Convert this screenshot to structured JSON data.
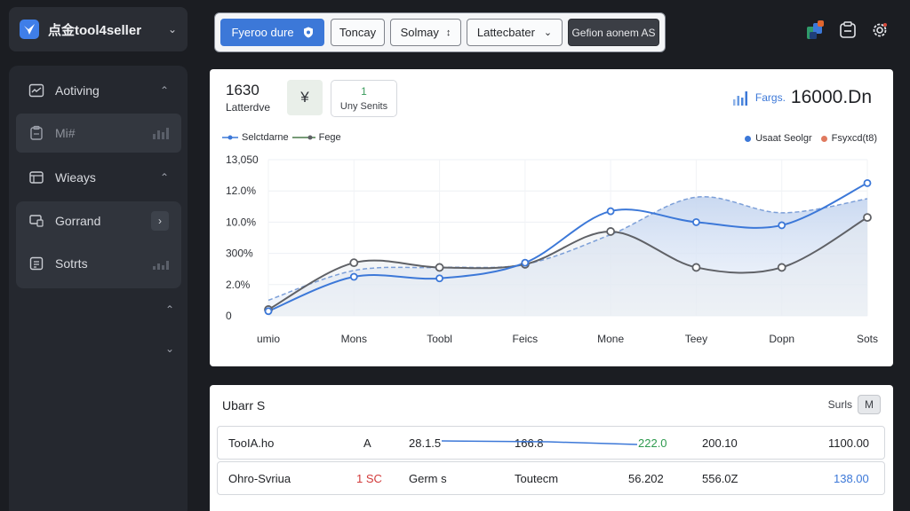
{
  "brand": {
    "name": "点金tool4seller"
  },
  "sidebar": {
    "items": [
      {
        "label": "Aotiving",
        "icon": "activity-icon",
        "trail": "chevron-up"
      },
      {
        "label": "Mi#",
        "icon": "clipboard-icon",
        "trail": "bars"
      },
      {
        "label": "Wieays",
        "icon": "window-icon",
        "trail": "chevron-up"
      },
      {
        "label": "Gorrand",
        "icon": "monitor-icon",
        "trail": "chevron-right"
      },
      {
        "label": "Sotrts",
        "icon": "report-icon",
        "trail": "bars"
      }
    ]
  },
  "toolbar": {
    "buttons": [
      "Fyeroo dure",
      "Toncay",
      "Solmay",
      "Lattecbater",
      "Gefion aonem AS"
    ],
    "solmay_suffix": "↕"
  },
  "kpi": {
    "value": "1630",
    "label": "Latterdve",
    "currency": "¥",
    "unit_value": "1",
    "unit_label": "Uny Senits"
  },
  "fargs": {
    "label": "Fargs.",
    "value": "16000.Dn"
  },
  "legend": {
    "left": [
      "Selctdarne",
      "Fege"
    ],
    "right": [
      "Usaat Seolgr",
      "Fsyxcd(t8)"
    ]
  },
  "colors": {
    "accent": "#3c78d8",
    "series_b": "#5f6166",
    "series_c": "#7c9fd8",
    "green": "#2e9a4e",
    "red": "#d23b3b",
    "dot_orange": "#e07a5f"
  },
  "chart_data": {
    "type": "line",
    "categories": [
      "umio",
      "Mons",
      "Toobl",
      "Feics",
      "Mone",
      "Teey",
      "Dopn",
      "Sots"
    ],
    "y_tick_labels": [
      "0",
      "2.0%",
      "300%",
      "10.0%",
      "12.0%",
      "13,050"
    ],
    "series": [
      {
        "name": "Selctdarne",
        "values": [
          0.3,
          2.5,
          2.4,
          3.4,
          6.7,
          6.0,
          5.8,
          8.5
        ]
      },
      {
        "name": "Fege",
        "values": [
          0.4,
          3.4,
          3.1,
          3.3,
          5.4,
          3.1,
          3.1,
          6.3
        ]
      },
      {
        "values": [
          1.0,
          2.9,
          3.1,
          3.3,
          5.2,
          7.6,
          6.6,
          7.5
        ]
      }
    ],
    "ylim": [
      0,
      10
    ],
    "grid": true,
    "legend_position": "top"
  },
  "table": {
    "title": "Ubarr S",
    "right_label": "Surls",
    "right_button": "M",
    "rows": [
      [
        "TooIA.ho",
        "A",
        "28.1.5",
        "166.8",
        "222.0",
        "200.10",
        "1100.00"
      ],
      [
        "Ohro-Svriua",
        "1 SC",
        "Germ s",
        "Toutecm",
        "56.202",
        "556.0Z",
        "138.00"
      ]
    ]
  }
}
